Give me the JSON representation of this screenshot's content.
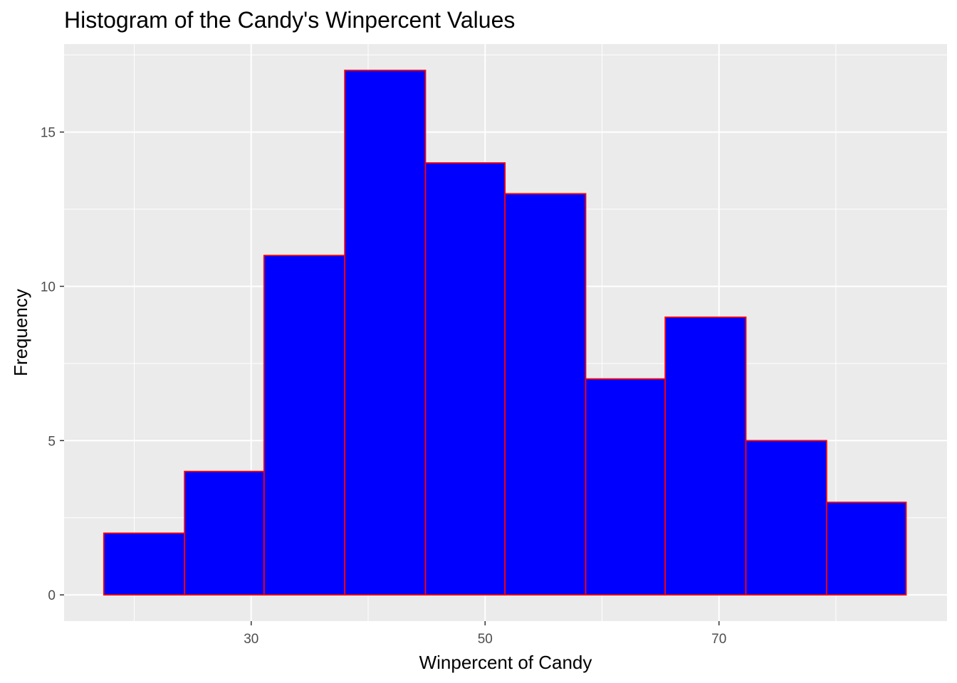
{
  "chart_data": {
    "type": "bar",
    "title": "Histogram of the Candy's Winpercent Values",
    "xlabel": "Winpercent of Candy",
    "ylabel": "Frequency",
    "bins": [
      {
        "x0": 17.4,
        "x1": 24.3,
        "count": 2
      },
      {
        "x0": 24.3,
        "x1": 31.1,
        "count": 4
      },
      {
        "x0": 31.1,
        "x1": 38.0,
        "count": 11
      },
      {
        "x0": 38.0,
        "x1": 44.9,
        "count": 17
      },
      {
        "x0": 44.9,
        "x1": 51.7,
        "count": 14
      },
      {
        "x0": 51.7,
        "x1": 58.6,
        "count": 13
      },
      {
        "x0": 58.6,
        "x1": 65.4,
        "count": 7
      },
      {
        "x0": 65.4,
        "x1": 72.3,
        "count": 9
      },
      {
        "x0": 72.3,
        "x1": 79.2,
        "count": 5
      },
      {
        "x0": 79.2,
        "x1": 86.0,
        "count": 3
      }
    ],
    "xlim": [
      14.0,
      89.5
    ],
    "ylim": [
      -0.85,
      17.85
    ],
    "x_ticks": [
      30,
      50,
      70
    ],
    "x_minor": [
      20,
      40,
      60,
      80
    ],
    "y_ticks": [
      0,
      5,
      10,
      15
    ],
    "y_minor": [
      2.5,
      7.5,
      12.5,
      17.5
    ],
    "grid": true,
    "bar_fill": "#0000ff",
    "bar_stroke": "#ff0000",
    "panel_bg": "#ebebeb",
    "grid_color": "#ffffff"
  }
}
